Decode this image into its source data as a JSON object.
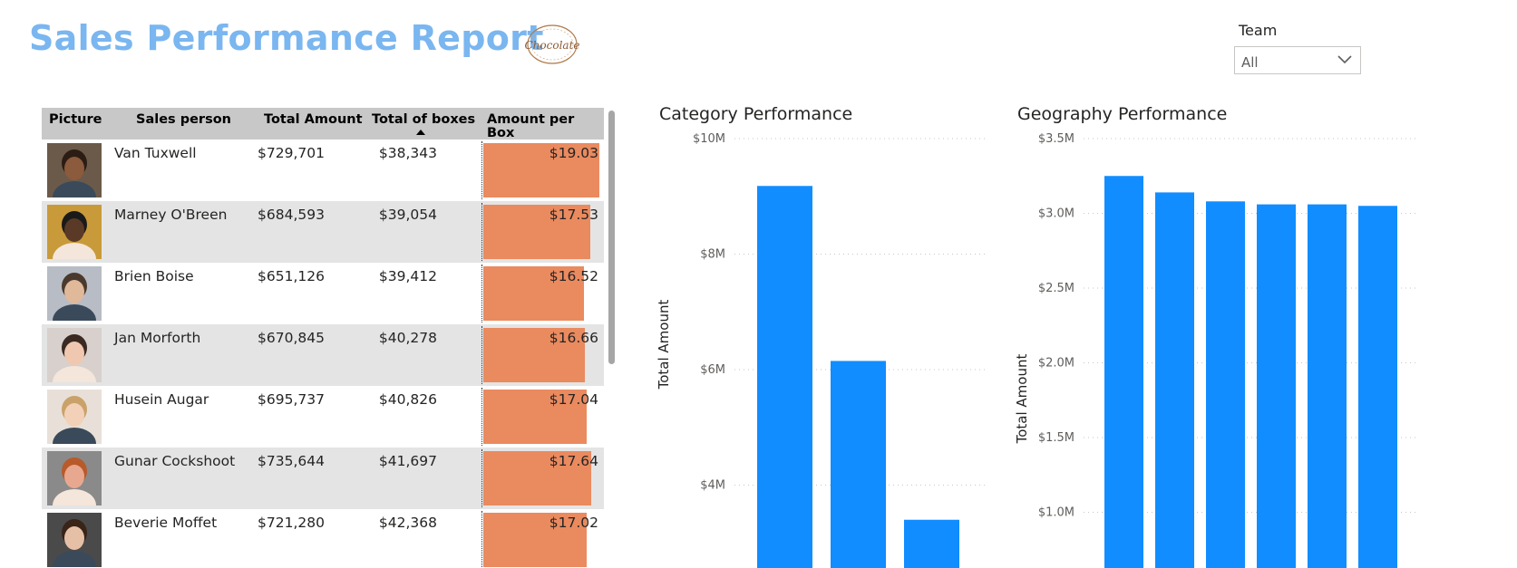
{
  "header": {
    "title": "Sales Performance Report",
    "logo_text": "Chocolate"
  },
  "filter": {
    "label": "Team",
    "selected": "All",
    "icon": "chevron-down-icon"
  },
  "table": {
    "columns": [
      "Picture",
      "Sales person",
      "Total Amount",
      "Total of boxes",
      "Amount per Box"
    ],
    "sorted_column": "Total of boxes",
    "sort_direction": "ascending",
    "bar_color": "#ea8a5f",
    "rows": [
      {
        "name": "Van Tuxwell",
        "total_amount": "$729,701",
        "total_boxes": "$38,343",
        "amount_per_box": "$19.03",
        "apb": 19.03
      },
      {
        "name": "Marney O'Breen",
        "total_amount": "$684,593",
        "total_boxes": "$39,054",
        "amount_per_box": "$17.53",
        "apb": 17.53
      },
      {
        "name": "Brien Boise",
        "total_amount": "$651,126",
        "total_boxes": "$39,412",
        "amount_per_box": "$16.52",
        "apb": 16.52
      },
      {
        "name": "Jan Morforth",
        "total_amount": "$670,845",
        "total_boxes": "$40,278",
        "amount_per_box": "$16.66",
        "apb": 16.66
      },
      {
        "name": "Husein Augar",
        "total_amount": "$695,737",
        "total_boxes": "$40,826",
        "amount_per_box": "$17.04",
        "apb": 17.04
      },
      {
        "name": "Gunar Cockshoot",
        "total_amount": "$735,644",
        "total_boxes": "$41,697",
        "amount_per_box": "$17.64",
        "apb": 17.64
      },
      {
        "name": "Beverie Moffet",
        "total_amount": "$721,280",
        "total_boxes": "$42,368",
        "amount_per_box": "$17.02",
        "apb": 17.02
      }
    ]
  },
  "chart_data": [
    {
      "type": "bar",
      "title": "Category Performance",
      "xlabel": "",
      "ylabel": "Total Amount",
      "ylim": [
        2,
        10
      ],
      "y_unit": "$M",
      "ticks": [
        "$10M",
        "$8M",
        "$6M",
        "$4M"
      ],
      "tick_values": [
        10,
        8,
        6,
        4
      ],
      "categories": [
        "",
        "",
        ""
      ],
      "values": [
        9.18,
        6.15,
        3.4
      ],
      "color": "#118dff",
      "grid": true
    },
    {
      "type": "bar",
      "title": "Geography Performance",
      "xlabel": "",
      "ylabel": "Total Amount",
      "ylim": [
        0.8,
        3.5
      ],
      "y_unit": "$M",
      "ticks": [
        "$3.5M",
        "$3.0M",
        "$2.5M",
        "$2.0M",
        "$1.5M",
        "$1.0M"
      ],
      "tick_values": [
        3.5,
        3.0,
        2.5,
        2.0,
        1.5,
        1.0
      ],
      "categories": [
        "",
        "",
        "",
        "",
        "",
        ""
      ],
      "values": [
        3.25,
        3.14,
        3.08,
        3.06,
        3.06,
        3.05
      ],
      "color": "#118dff",
      "grid": true
    }
  ]
}
